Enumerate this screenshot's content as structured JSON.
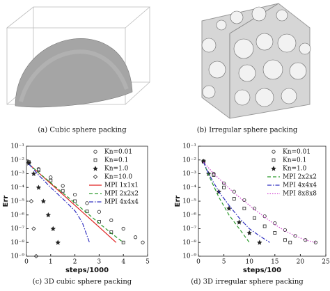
{
  "images": [
    {
      "caption": "(a) Cubic sphere packing"
    },
    {
      "caption": "(b) Irregular sphere packing"
    }
  ],
  "chart_data": [
    {
      "type": "line",
      "caption": "(c) 3D cubic sphere packing",
      "xlabel": "steps/1000",
      "ylabel": "Err",
      "log_y": true,
      "legend": "upper right",
      "xlim": [
        0,
        5
      ],
      "xticks": [
        0,
        1,
        2,
        3,
        4,
        5
      ],
      "ylim": [
        1e-09,
        0.1
      ],
      "yticks": [
        {
          "value": 0.1,
          "label": "10⁻¹"
        },
        {
          "value": 0.01,
          "label": "10⁻²"
        },
        {
          "value": 0.001,
          "label": "10⁻³"
        },
        {
          "value": 0.0001,
          "label": "10⁻⁴"
        },
        {
          "value": 1e-05,
          "label": "10⁻⁵"
        },
        {
          "value": 1e-06,
          "label": "10⁻⁶"
        },
        {
          "value": 1e-07,
          "label": "10⁻⁷"
        },
        {
          "value": 1e-08,
          "label": "10⁻⁸"
        },
        {
          "value": 1e-09,
          "label": "10⁻⁹"
        }
      ],
      "series": [
        {
          "name": "Kn=0.01",
          "color": "#222222",
          "marker": "circle",
          "dash": "none",
          "x": [
            0.1,
            0.5,
            1,
            1.5,
            2,
            2.5,
            3,
            3.5,
            4,
            4.5,
            4.8
          ],
          "values": [
            0.007,
            0.0022,
            0.00054,
            0.00013,
            3e-05,
            7.2e-06,
            1.7e-06,
            4.1e-07,
            1e-07,
            2.4e-08,
            1e-08
          ]
        },
        {
          "name": "Kn=0.1",
          "color": "#222222",
          "marker": "square",
          "dash": "none",
          "x": [
            0.1,
            0.5,
            1,
            1.5,
            2,
            2.5,
            3,
            3.5,
            4
          ],
          "values": [
            0.007,
            0.0018,
            0.00032,
            5.6e-05,
            1e-05,
            1.8e-06,
            3.2e-07,
            5.6e-08,
            1e-08
          ]
        },
        {
          "name": "Kn=1.0",
          "color": "#222222",
          "marker": "star",
          "dash": "none",
          "x": [
            0.1,
            0.3,
            0.5,
            0.7,
            0.9,
            1.1,
            1.3
          ],
          "values": [
            0.006,
            0.001,
            0.0001,
            1e-05,
            1e-06,
            1e-07,
            1e-08
          ]
        },
        {
          "name": "Kn=10.0",
          "color": "#222222",
          "marker": "diamond",
          "dash": "none",
          "x": [
            0.1,
            0.2,
            0.3,
            0.4
          ],
          "values": [
            0.006,
            1e-05,
            1e-07,
            1e-09
          ]
        },
        {
          "name": "MPI 1x1x1",
          "color": "#e02020",
          "marker": "none",
          "dash": "solid",
          "x": [
            0.1,
            1,
            2,
            3,
            3.7
          ],
          "values": [
            0.005,
            0.00019,
            5e-06,
            1.3e-07,
            1e-08
          ]
        },
        {
          "name": "MPI 2x2x2",
          "color": "#2a9a2a",
          "marker": "none",
          "dash": "dashed",
          "x": [
            0.1,
            0.5,
            1,
            1.5,
            2,
            2.5,
            3,
            3.5,
            4
          ],
          "values": [
            0.005,
            0.0012,
            0.00022,
            4e-05,
            7.5e-06,
            1.4e-06,
            2.5e-07,
            4.7e-08,
            1e-08
          ]
        },
        {
          "name": "MPI 4x4x4",
          "color": "#3030c0",
          "marker": "none",
          "dash": "dashdot",
          "x": [
            0.1,
            0.5,
            1,
            1.5,
            2,
            2.3,
            2.6
          ],
          "values": [
            0.005,
            0.0008,
            0.0001,
            1.5e-05,
            2e-06,
            3e-07,
            1e-08
          ]
        }
      ]
    },
    {
      "type": "line",
      "caption": "(d) 3D irregular sphere packing",
      "xlabel": "steps/100",
      "ylabel": "Err",
      "log_y": true,
      "legend": "upper right",
      "xlim": [
        0,
        25
      ],
      "xticks": [
        0,
        5,
        10,
        15,
        20,
        25
      ],
      "ylim": [
        1e-09,
        0.1
      ],
      "yticks": [
        {
          "value": 0.1,
          "label": "10⁻¹"
        },
        {
          "value": 0.01,
          "label": "10⁻²"
        },
        {
          "value": 0.001,
          "label": "10⁻³"
        },
        {
          "value": 0.0001,
          "label": "10⁻⁴"
        },
        {
          "value": 1e-05,
          "label": "10⁻⁵"
        },
        {
          "value": 1e-06,
          "label": "10⁻⁶"
        },
        {
          "value": 1e-07,
          "label": "10⁻⁷"
        },
        {
          "value": 1e-08,
          "label": "10⁻⁸"
        },
        {
          "value": 1e-09,
          "label": "10⁻⁹"
        }
      ],
      "series": [
        {
          "name": "Kn=0.01",
          "color": "#222222",
          "marker": "circle",
          "dash": "none",
          "x": [
            1,
            3,
            5,
            7,
            9,
            11,
            13,
            15,
            17,
            19,
            21,
            23
          ],
          "values": [
            0.008,
            0.001,
            0.0002,
            5e-05,
            1.2e-05,
            3e-06,
            8e-07,
            2.5e-07,
            8e-08,
            3e-08,
            1.5e-08,
            1e-08
          ]
        },
        {
          "name": "Kn=0.1",
          "color": "#222222",
          "marker": "square",
          "dash": "none",
          "x": [
            1,
            3,
            5,
            7,
            9,
            11,
            13,
            15,
            17,
            18
          ],
          "values": [
            0.008,
            0.0008,
            0.0001,
            1.5e-05,
            3e-06,
            6e-07,
            1.5e-07,
            5e-08,
            1.5e-08,
            1e-08
          ]
        },
        {
          "name": "Kn=1.0",
          "color": "#222222",
          "marker": "star",
          "dash": "none",
          "x": [
            1,
            2,
            4,
            6,
            8,
            10,
            12
          ],
          "values": [
            0.008,
            0.001,
            5e-05,
            3e-06,
            3e-07,
            5e-08,
            1e-08
          ]
        },
        {
          "name": "MPI 2x2x2",
          "color": "#2a9a2a",
          "marker": "none",
          "dash": "dashed",
          "x": [
            1,
            2,
            4,
            6,
            8,
            10
          ],
          "values": [
            0.007,
            0.0008,
            2e-05,
            1e-06,
            1e-07,
            1e-08
          ]
        },
        {
          "name": "MPI 4x4x4",
          "color": "#3030c0",
          "marker": "none",
          "dash": "dashdot",
          "x": [
            1,
            2,
            4,
            6,
            8,
            10,
            12,
            14
          ],
          "values": [
            0.007,
            0.001,
            5e-05,
            5e-06,
            6e-07,
            1e-07,
            3e-08,
            1e-08
          ]
        },
        {
          "name": "MPI 8x8x8",
          "color": "#d040d0",
          "marker": "none",
          "dash": "dotted",
          "x": [
            1,
            3,
            5,
            7,
            9,
            11,
            13,
            15,
            17,
            19,
            21,
            23
          ],
          "values": [
            0.007,
            0.001,
            0.0002,
            4e-05,
            1e-05,
            2.5e-06,
            7e-07,
            2e-07,
            7e-08,
            3e-08,
            1.5e-08,
            1e-08
          ]
        }
      ]
    }
  ]
}
